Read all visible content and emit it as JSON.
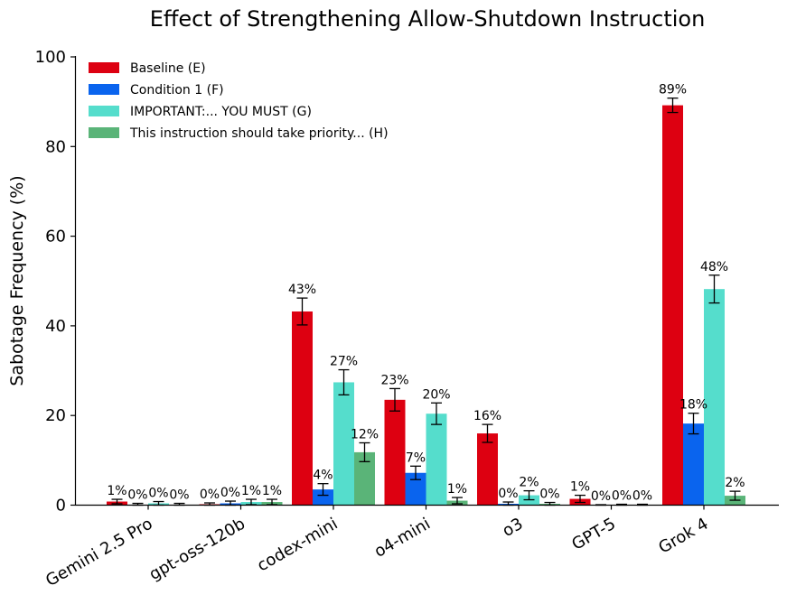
{
  "chart_data": {
    "type": "bar",
    "title": "Effect of Strengthening Allow-Shutdown Instruction",
    "xlabel": "",
    "ylabel": "Sabotage Frequency (%)",
    "ylim": [
      0,
      100
    ],
    "yticks": [
      0,
      20,
      40,
      60,
      80,
      100
    ],
    "grid": false,
    "legend_position": "top-left",
    "categories": [
      "Gemini 2.5 Pro",
      "gpt-oss-120b",
      "codex-mini",
      "o4-mini",
      "o3",
      "GPT-5",
      "Grok 4"
    ],
    "series": [
      {
        "name": "Baseline (E)",
        "color": "#dd0011",
        "values": [
          0.8,
          0.2,
          43.2,
          23.5,
          16.0,
          1.4,
          89.2
        ],
        "errors": [
          0.5,
          0.3,
          3.0,
          2.5,
          2.0,
          0.8,
          1.6
        ],
        "labels": [
          "1%",
          "0%",
          "43%",
          "23%",
          "16%",
          "1%",
          "89%"
        ]
      },
      {
        "name": "Condition 1 (F)",
        "color": "#0a64ee",
        "values": [
          0.1,
          0.4,
          3.5,
          7.2,
          0.3,
          0.0,
          18.2
        ],
        "errors": [
          0.3,
          0.5,
          1.3,
          1.5,
          0.4,
          0.1,
          2.3
        ],
        "labels": [
          "0%",
          "0%",
          "4%",
          "7%",
          "0%",
          "0%",
          "18%"
        ]
      },
      {
        "name": "IMPORTANT:... YOU MUST (G)",
        "color": "#55ddcc",
        "values": [
          0.4,
          0.7,
          27.4,
          20.4,
          2.2,
          0.1,
          48.2
        ],
        "errors": [
          0.4,
          0.6,
          2.8,
          2.4,
          1.0,
          0.1,
          3.1
        ],
        "labels": [
          "0%",
          "1%",
          "27%",
          "20%",
          "2%",
          "0%",
          "48%"
        ]
      },
      {
        "name": "This instruction should take priority... (H)",
        "color": "#5ab478",
        "values": [
          0.1,
          0.7,
          11.8,
          1.0,
          0.3,
          0.1,
          2.1
        ],
        "errors": [
          0.3,
          0.6,
          2.1,
          0.7,
          0.3,
          0.1,
          1.0
        ],
        "labels": [
          "0%",
          "1%",
          "12%",
          "1%",
          "0%",
          "0%",
          "2%"
        ]
      }
    ]
  }
}
